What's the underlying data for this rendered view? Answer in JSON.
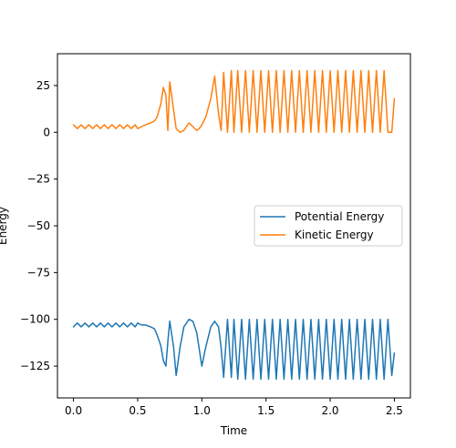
{
  "chart_data": {
    "type": "line",
    "title": "",
    "xlabel": "Time",
    "ylabel": "Energy",
    "xlim": [
      -0.125,
      2.625
    ],
    "ylim": [
      -142,
      42
    ],
    "x_ticks": [
      0.0,
      0.5,
      1.0,
      1.5,
      2.0,
      2.5
    ],
    "x_tick_labels": [
      "0.0",
      "0.5",
      "1.0",
      "1.5",
      "2.0",
      "2.5"
    ],
    "y_ticks": [
      25,
      0,
      -25,
      -50,
      -75,
      -100,
      -125
    ],
    "y_tick_labels": [
      "25",
      "0",
      "−25",
      "−50",
      "−75",
      "−100",
      "−125"
    ],
    "grid": false,
    "legend_position": "center-right",
    "series": [
      {
        "name": "Potential Energy",
        "color": "#1f77b4",
        "x": [
          0.0,
          0.03,
          0.06,
          0.09,
          0.12,
          0.15,
          0.18,
          0.21,
          0.24,
          0.27,
          0.3,
          0.33,
          0.36,
          0.39,
          0.42,
          0.45,
          0.48,
          0.5,
          0.53,
          0.56,
          0.6,
          0.63,
          0.65,
          0.68,
          0.7,
          0.72,
          0.735,
          0.75,
          0.78,
          0.8,
          0.83,
          0.86,
          0.9,
          0.93,
          0.96,
          0.98,
          1.0,
          1.03,
          1.07,
          1.1,
          1.13,
          1.15,
          1.17,
          1.2,
          1.23,
          1.25,
          1.28,
          1.31,
          1.34,
          1.37,
          1.4,
          1.43,
          1.46,
          1.49,
          1.52,
          1.55,
          1.58,
          1.61,
          1.64,
          1.67,
          1.7,
          1.73,
          1.76,
          1.79,
          1.82,
          1.85,
          1.88,
          1.91,
          1.94,
          1.97,
          2.0,
          2.03,
          2.06,
          2.09,
          2.12,
          2.15,
          2.18,
          2.21,
          2.24,
          2.27,
          2.3,
          2.33,
          2.36,
          2.39,
          2.42,
          2.45,
          2.48,
          2.5
        ],
        "y": [
          -104,
          -102,
          -104,
          -102,
          -104,
          -102,
          -104,
          -102,
          -104,
          -102,
          -104,
          -102,
          -104,
          -102,
          -104,
          -102,
          -104,
          -102,
          -103,
          -103,
          -104,
          -105,
          -108,
          -114,
          -122,
          -125,
          -112,
          -101,
          -115,
          -130,
          -115,
          -104,
          -100,
          -101,
          -107,
          -116,
          -125,
          -115,
          -104,
          -101,
          -104,
          -115,
          -131,
          -100,
          -131,
          -100,
          -132,
          -100,
          -132,
          -100,
          -132,
          -100,
          -132,
          -100,
          -132,
          -100,
          -132,
          -100,
          -132,
          -100,
          -132,
          -100,
          -132,
          -100,
          -132,
          -100,
          -132,
          -100,
          -132,
          -100,
          -132,
          -100,
          -132,
          -100,
          -132,
          -100,
          -132,
          -100,
          -132,
          -100,
          -132,
          -100,
          -132,
          -100,
          -132,
          -100,
          -130,
          -118
        ]
      },
      {
        "name": "Kinetic Energy",
        "color": "#ff7f0e",
        "x": [
          0.0,
          0.03,
          0.06,
          0.09,
          0.12,
          0.15,
          0.18,
          0.21,
          0.24,
          0.27,
          0.3,
          0.33,
          0.36,
          0.39,
          0.42,
          0.45,
          0.48,
          0.5,
          0.53,
          0.56,
          0.6,
          0.63,
          0.65,
          0.68,
          0.7,
          0.72,
          0.735,
          0.75,
          0.78,
          0.8,
          0.83,
          0.86,
          0.9,
          0.93,
          0.96,
          0.98,
          1.0,
          1.03,
          1.07,
          1.1,
          1.13,
          1.15,
          1.17,
          1.2,
          1.23,
          1.25,
          1.28,
          1.31,
          1.34,
          1.37,
          1.4,
          1.43,
          1.46,
          1.49,
          1.52,
          1.55,
          1.58,
          1.61,
          1.64,
          1.67,
          1.7,
          1.73,
          1.76,
          1.79,
          1.82,
          1.85,
          1.88,
          1.91,
          1.94,
          1.97,
          2.0,
          2.03,
          2.06,
          2.09,
          2.12,
          2.15,
          2.18,
          2.21,
          2.24,
          2.27,
          2.3,
          2.33,
          2.36,
          2.39,
          2.42,
          2.45,
          2.48,
          2.5
        ],
        "y": [
          4,
          2,
          4,
          2,
          4,
          2,
          4,
          2,
          4,
          2,
          4,
          2,
          4,
          2,
          4,
          2,
          4,
          2,
          3,
          4,
          5,
          6,
          8,
          15,
          24,
          20,
          1,
          27,
          12,
          2,
          0,
          1,
          5,
          3,
          1,
          2,
          4,
          8,
          18,
          30,
          10,
          1,
          32,
          0,
          33,
          0,
          33,
          0,
          33,
          0,
          33,
          0,
          33,
          0,
          33,
          0,
          33,
          0,
          33,
          0,
          33,
          0,
          33,
          0,
          33,
          0,
          33,
          0,
          33,
          0,
          33,
          0,
          33,
          0,
          33,
          0,
          33,
          0,
          33,
          0,
          33,
          0,
          33,
          0,
          33,
          0,
          0,
          18
        ]
      }
    ]
  }
}
